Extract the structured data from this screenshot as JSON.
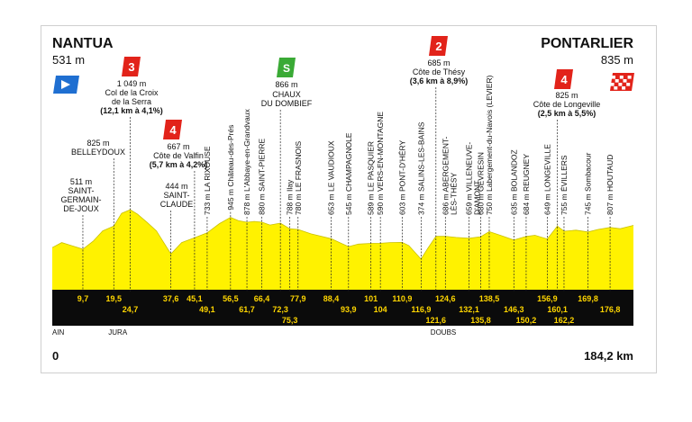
{
  "chart_data": {
    "type": "area",
    "title": "",
    "start": {
      "name": "NANTUA",
      "altitude": "531 m"
    },
    "finish": {
      "name": "PONTARLIER",
      "altitude": "835 m"
    },
    "total_distance_label": "184,2 km",
    "start_distance_label": "0",
    "x_max": 184.2,
    "regions": [
      {
        "name": "AIN",
        "km": 0
      },
      {
        "name": "JURA",
        "km": 19.5
      },
      {
        "name": "DOUBS",
        "km": 121.6
      }
    ],
    "profile": [
      [
        0,
        531
      ],
      [
        3,
        600
      ],
      [
        6,
        560
      ],
      [
        9.7,
        511
      ],
      [
        13,
        620
      ],
      [
        16,
        760
      ],
      [
        19.5,
        825
      ],
      [
        22,
        1000
      ],
      [
        24.7,
        1049
      ],
      [
        27,
        990
      ],
      [
        30,
        880
      ],
      [
        33,
        760
      ],
      [
        37.6,
        444
      ],
      [
        41,
        600
      ],
      [
        45.1,
        667
      ],
      [
        49.1,
        733
      ],
      [
        53,
        860
      ],
      [
        56.5,
        945
      ],
      [
        59,
        900
      ],
      [
        61.7,
        878
      ],
      [
        64,
        890
      ],
      [
        66.4,
        880
      ],
      [
        69,
        840
      ],
      [
        72.3,
        866
      ],
      [
        75.3,
        788
      ],
      [
        77.9,
        780
      ],
      [
        82,
        720
      ],
      [
        88.4,
        653
      ],
      [
        93.9,
        545
      ],
      [
        97,
        580
      ],
      [
        101,
        589
      ],
      [
        104,
        590
      ],
      [
        107,
        600
      ],
      [
        110.9,
        603
      ],
      [
        113,
        560
      ],
      [
        116.9,
        374
      ],
      [
        119,
        520
      ],
      [
        121.6,
        685
      ],
      [
        124.6,
        686
      ],
      [
        128,
        670
      ],
      [
        132.1,
        659
      ],
      [
        135.8,
        680
      ],
      [
        138.5,
        750
      ],
      [
        142,
        700
      ],
      [
        146.3,
        635
      ],
      [
        150.2,
        684
      ],
      [
        153,
        700
      ],
      [
        156.9,
        649
      ],
      [
        160.1,
        825
      ],
      [
        162.2,
        755
      ],
      [
        166,
        770
      ],
      [
        169.8,
        745
      ],
      [
        173,
        780
      ],
      [
        176.8,
        807
      ],
      [
        180,
        790
      ],
      [
        184.2,
        835
      ]
    ],
    "climbs": [
      {
        "category": "3",
        "altitude": "1 049 m",
        "name": "Col de la Croix de la Serra",
        "detail": "(12,1 km à 4,1%)",
        "km": 24.7
      },
      {
        "category": "4",
        "altitude": "667 m",
        "name": "Côte de Valfin",
        "detail": "(5,7 km à 4,2%)",
        "km": 45.1
      },
      {
        "category": "2",
        "altitude": "685 m",
        "name": "Côte de Thésy",
        "detail": "(3,6 km à 8,9%)",
        "km": 121.6
      },
      {
        "category": "4",
        "altitude": "825 m",
        "name": "Côte de Longeville",
        "detail": "(2,5 km à 5,5%)",
        "km": 160.1
      }
    ],
    "sprint": {
      "altitude": "866 m",
      "name": "CHAUX DU DOMBIEF",
      "km": 72.3
    },
    "block_labels": [
      {
        "alt": "511 m",
        "name": "SAINT- GERMAIN- DE-JOUX",
        "km": 9.7
      },
      {
        "alt": "825 m",
        "name": "BELLEYDOUX",
        "km": 19.5
      },
      {
        "alt": "444 m",
        "name": "SAINT- CLAUDE",
        "km": 37.6
      }
    ],
    "rotated_labels": [
      {
        "text": "733 m LA RIXOUSE",
        "km": 49.1
      },
      {
        "text": "945 m Château-des-Prés",
        "km": 56.5
      },
      {
        "text": "878 m L'Abbaye-en-Grandvaux",
        "km": 61.7
      },
      {
        "text": "880 m SAINT-PIERRE",
        "km": 66.4
      },
      {
        "text": "788 m Ilay",
        "km": 75.3
      },
      {
        "text": "780 m LE FRASNOIS",
        "km": 77.9
      },
      {
        "text": "653 m LE VAUDIOUX",
        "km": 88.4
      },
      {
        "text": "545 m CHAMPAGNOLE",
        "km": 93.9
      },
      {
        "text": "589 m LE PASQUIER",
        "km": 101
      },
      {
        "text": "590 m VERS-EN-MONTAGNE",
        "km": 104
      },
      {
        "text": "603 m PONT-D'HÉRY",
        "km": 110.9
      },
      {
        "text": "374 m SALINS-LES-BAINS",
        "km": 116.9
      },
      {
        "text": "686 m ABERGEMENT-",
        "km": 124.6,
        "sub": "LÈS-THÉSY"
      },
      {
        "text": "659 m VILLENEUVE-",
        "km": 132.1,
        "sub": "D'AMONT"
      },
      {
        "text": "680 m GEVRESIN",
        "km": 135.8
      },
      {
        "text": "750 m Labergement-du-Navois (LEVIER)",
        "km": 138.5
      },
      {
        "text": "635 m BOLANDOZ",
        "km": 146.3
      },
      {
        "text": "684 m REUGNEY",
        "km": 150.2
      },
      {
        "text": "649 m LONGEVILLE",
        "km": 156.9
      },
      {
        "text": "755 m ÉVILLERS",
        "km": 162.2
      },
      {
        "text": "745 m Sombacour",
        "km": 169.8
      },
      {
        "text": "807 m HOUTAUD",
        "km": 176.8
      }
    ],
    "km_top": [
      "9,7",
      "19,5",
      "37,6",
      "45,1",
      "56,5",
      "66,4",
      "77,9",
      "88,4",
      "101",
      "110,9",
      "124,6",
      "138,5",
      "156,9",
      "169,8"
    ],
    "km_top_pos": [
      9.7,
      19.5,
      37.6,
      45.1,
      56.5,
      66.4,
      77.9,
      88.4,
      101,
      110.9,
      124.6,
      138.5,
      156.9,
      169.8
    ],
    "km_mid": [
      "24,7",
      "49,1",
      "61,7",
      "72,3",
      "93,9",
      "104",
      "116,9",
      "132,1",
      "146,3",
      "160,1",
      "176,8"
    ],
    "km_mid_pos": [
      24.7,
      49.1,
      61.7,
      72.3,
      93.9,
      104,
      116.9,
      132.1,
      146.3,
      160.1,
      176.8
    ],
    "km_bot": [
      "75,3",
      "121,6",
      "135,8",
      "150,2",
      "162,2"
    ],
    "km_bot_pos": [
      75.3,
      121.6,
      135.8,
      150.2,
      162.2
    ],
    "colors": {
      "profile": "#fff200",
      "band": "#0b0b0b",
      "cat": "#e2231a",
      "sprint": "#3aaa35",
      "start": "#1f6fd1",
      "km_text": "#ffd600"
    }
  }
}
